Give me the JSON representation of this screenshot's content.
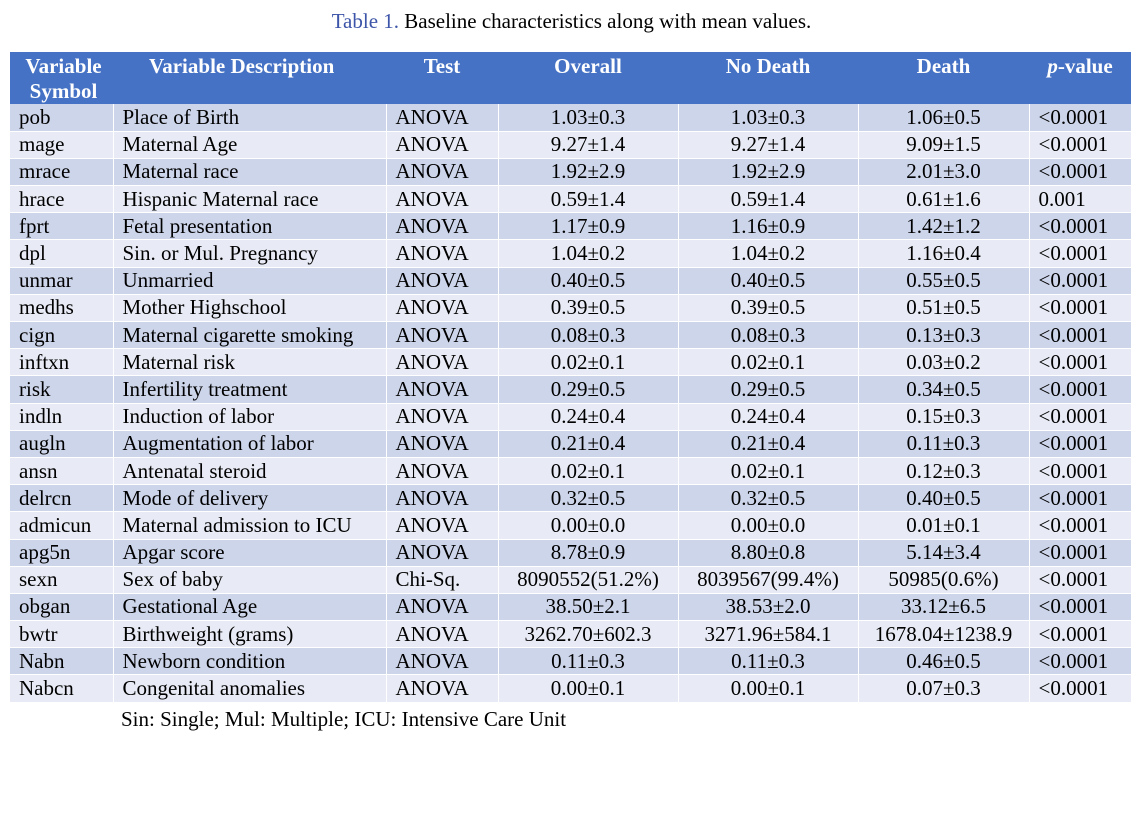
{
  "caption": {
    "label": "Table 1.",
    "text": " Baseline characteristics along with mean values."
  },
  "header": {
    "symbol_line1": "Variable",
    "symbol_line2": "Symbol",
    "description": "Variable Description",
    "test": "Test",
    "overall": "Overall",
    "no_death": "No Death",
    "death": "Death",
    "pvalue_italic": "p",
    "pvalue_rest": "-value"
  },
  "rows": [
    {
      "symbol": "pob",
      "description": "Place of Birth",
      "test": "ANOVA",
      "overall": "1.03±0.3",
      "no_death": "1.03±0.3",
      "death": "1.06±0.5",
      "pvalue": "<0.0001"
    },
    {
      "symbol": "mage",
      "description": "Maternal Age",
      "test": "ANOVA",
      "overall": "9.27±1.4",
      "no_death": "9.27±1.4",
      "death": "9.09±1.5",
      "pvalue": "<0.0001"
    },
    {
      "symbol": "mrace",
      "description": "Maternal race",
      "test": "ANOVA",
      "overall": "1.92±2.9",
      "no_death": "1.92±2.9",
      "death": "2.01±3.0",
      "pvalue": "<0.0001"
    },
    {
      "symbol": "hrace",
      "description": "Hispanic Maternal race",
      "test": "ANOVA",
      "overall": "0.59±1.4",
      "no_death": "0.59±1.4",
      "death": "0.61±1.6",
      "pvalue": "0.001"
    },
    {
      "symbol": "fprt",
      "description": "Fetal presentation",
      "test": "ANOVA",
      "overall": "1.17±0.9",
      "no_death": "1.16±0.9",
      "death": "1.42±1.2",
      "pvalue": "<0.0001"
    },
    {
      "symbol": "dpl",
      "description": "Sin. or Mul. Pregnancy",
      "test": "ANOVA",
      "overall": "1.04±0.2",
      "no_death": "1.04±0.2",
      "death": "1.16±0.4",
      "pvalue": "<0.0001"
    },
    {
      "symbol": "unmar",
      "description": "Unmarried",
      "test": "ANOVA",
      "overall": "0.40±0.5",
      "no_death": "0.40±0.5",
      "death": "0.55±0.5",
      "pvalue": "<0.0001"
    },
    {
      "symbol": "medhs",
      "description": "Mother Highschool",
      "test": "ANOVA",
      "overall": "0.39±0.5",
      "no_death": "0.39±0.5",
      "death": "0.51±0.5",
      "pvalue": "<0.0001"
    },
    {
      "symbol": "cign",
      "description": "Maternal cigarette smoking",
      "test": "ANOVA",
      "overall": "0.08±0.3",
      "no_death": "0.08±0.3",
      "death": "0.13±0.3",
      "pvalue": "<0.0001"
    },
    {
      "symbol": "inftxn",
      "description": "Maternal risk",
      "test": "ANOVA",
      "overall": "0.02±0.1",
      "no_death": "0.02±0.1",
      "death": "0.03±0.2",
      "pvalue": "<0.0001"
    },
    {
      "symbol": "risk",
      "description": "Infertility treatment",
      "test": "ANOVA",
      "overall": "0.29±0.5",
      "no_death": "0.29±0.5",
      "death": "0.34±0.5",
      "pvalue": "<0.0001"
    },
    {
      "symbol": "indln",
      "description": "Induction of labor",
      "test": "ANOVA",
      "overall": "0.24±0.4",
      "no_death": "0.24±0.4",
      "death": "0.15±0.3",
      "pvalue": "<0.0001"
    },
    {
      "symbol": "augln",
      "description": "Augmentation of labor",
      "test": "ANOVA",
      "overall": "0.21±0.4",
      "no_death": "0.21±0.4",
      "death": "0.11±0.3",
      "pvalue": "<0.0001"
    },
    {
      "symbol": "ansn",
      "description": "Antenatal steroid",
      "test": "ANOVA",
      "overall": "0.02±0.1",
      "no_death": "0.02±0.1",
      "death": "0.12±0.3",
      "pvalue": "<0.0001"
    },
    {
      "symbol": "delrcn",
      "description": "Mode of delivery",
      "test": "ANOVA",
      "overall": "0.32±0.5",
      "no_death": "0.32±0.5",
      "death": "0.40±0.5",
      "pvalue": "<0.0001"
    },
    {
      "symbol": "admicun",
      "description": "Maternal admission to ICU",
      "test": "ANOVA",
      "overall": "0.00±0.0",
      "no_death": "0.00±0.0",
      "death": "0.01±0.1",
      "pvalue": "<0.0001"
    },
    {
      "symbol": "apg5n",
      "description": "Apgar score",
      "test": "ANOVA",
      "overall": "8.78±0.9",
      "no_death": "8.80±0.8",
      "death": "5.14±3.4",
      "pvalue": "<0.0001"
    },
    {
      "symbol": "sexn",
      "description": "Sex of baby",
      "test": "Chi-Sq.",
      "overall": "8090552(51.2%)",
      "no_death": "8039567(99.4%)",
      "death": "50985(0.6%)",
      "pvalue": "<0.0001"
    },
    {
      "symbol": "obgan",
      "description": "Gestational Age",
      "test": "ANOVA",
      "overall": "38.50±2.1",
      "no_death": "38.53±2.0",
      "death": "33.12±6.5",
      "pvalue": "<0.0001"
    },
    {
      "symbol": "bwtr",
      "description": "Birthweight (grams)",
      "test": "ANOVA",
      "overall": "3262.70±602.3",
      "no_death": "3271.96±584.1",
      "death": "1678.04±1238.9",
      "pvalue": "<0.0001"
    },
    {
      "symbol": "Nabn",
      "description": "Newborn condition",
      "test": "ANOVA",
      "overall": "0.11±0.3",
      "no_death": "0.11±0.3",
      "death": "0.46±0.5",
      "pvalue": "<0.0001"
    },
    {
      "symbol": "Nabcn",
      "description": "Congenital anomalies",
      "test": "ANOVA",
      "overall": "0.00±0.1",
      "no_death": "0.00±0.1",
      "death": "0.07±0.3",
      "pvalue": "<0.0001"
    }
  ],
  "footnote": "Sin: Single; Mul: Multiple; ICU: Intensive Care Unit",
  "colors": {
    "header_bg": "#4572c4",
    "row_odd_bg": "#cdd5ea",
    "row_even_bg": "#e8ebf5",
    "caption_label": "#3d55a8"
  }
}
